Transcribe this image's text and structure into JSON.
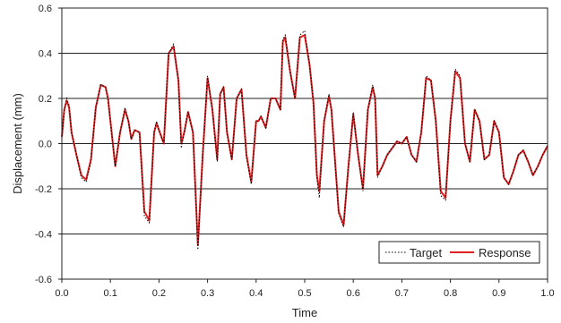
{
  "chart_data": {
    "type": "line",
    "xlabel": "Time",
    "ylabel": "Displacement (mm)",
    "xlim": [
      0.0,
      1.0
    ],
    "ylim": [
      -0.6,
      0.6
    ],
    "x_ticks": [
      "0.0",
      "0.1",
      "0.2",
      "0.3",
      "0.4",
      "0.5",
      "0.6",
      "0.7",
      "0.8",
      "0.9",
      "1.0"
    ],
    "y_ticks": [
      "-0.6",
      "-0.4",
      "-0.2",
      "0.0",
      "0.2",
      "0.4",
      "0.6"
    ],
    "grid": "horizontal",
    "legend_position": "bottom-right",
    "series": [
      {
        "name": "Target",
        "color": "#000000",
        "style": "dotted",
        "x": [
          0.0,
          0.005,
          0.01,
          0.015,
          0.02,
          0.03,
          0.04,
          0.05,
          0.06,
          0.07,
          0.08,
          0.09,
          0.095,
          0.1,
          0.105,
          0.11,
          0.12,
          0.13,
          0.137,
          0.143,
          0.15,
          0.16,
          0.17,
          0.18,
          0.19,
          0.195,
          0.2,
          0.21,
          0.22,
          0.23,
          0.24,
          0.246,
          0.252,
          0.26,
          0.27,
          0.28,
          0.29,
          0.3,
          0.31,
          0.32,
          0.326,
          0.333,
          0.34,
          0.35,
          0.36,
          0.37,
          0.38,
          0.39,
          0.4,
          0.405,
          0.41,
          0.42,
          0.43,
          0.44,
          0.45,
          0.455,
          0.46,
          0.47,
          0.48,
          0.49,
          0.5,
          0.51,
          0.518,
          0.525,
          0.53,
          0.54,
          0.55,
          0.555,
          0.56,
          0.57,
          0.58,
          0.59,
          0.6,
          0.61,
          0.62,
          0.63,
          0.64,
          0.645,
          0.65,
          0.66,
          0.67,
          0.68,
          0.69,
          0.7,
          0.71,
          0.72,
          0.73,
          0.74,
          0.75,
          0.76,
          0.77,
          0.78,
          0.79,
          0.8,
          0.81,
          0.82,
          0.83,
          0.84,
          0.85,
          0.86,
          0.87,
          0.88,
          0.89,
          0.9,
          0.91,
          0.92,
          0.93,
          0.94,
          0.95,
          0.96,
          0.97,
          0.98,
          0.99,
          1.0
        ],
        "values": [
          0.02,
          0.15,
          0.2,
          0.17,
          0.05,
          -0.05,
          -0.15,
          -0.17,
          -0.08,
          0.16,
          0.26,
          0.25,
          0.2,
          0.1,
          0.0,
          -0.1,
          0.05,
          0.16,
          0.1,
          0.02,
          0.06,
          0.05,
          -0.32,
          -0.35,
          0.05,
          0.1,
          0.06,
          0.0,
          0.4,
          0.44,
          0.28,
          -0.02,
          0.05,
          0.14,
          0.05,
          -0.47,
          -0.05,
          0.3,
          0.15,
          -0.08,
          0.22,
          0.25,
          0.05,
          -0.07,
          0.2,
          0.24,
          -0.06,
          -0.18,
          0.1,
          0.1,
          0.12,
          0.07,
          0.2,
          0.2,
          0.15,
          0.46,
          0.48,
          0.32,
          0.2,
          0.48,
          0.5,
          0.35,
          0.18,
          -0.15,
          -0.24,
          0.1,
          0.22,
          0.15,
          0.0,
          -0.31,
          -0.37,
          -0.1,
          0.14,
          -0.05,
          -0.21,
          0.15,
          0.26,
          0.2,
          -0.15,
          -0.1,
          -0.05,
          -0.02,
          0.01,
          0.0,
          0.03,
          -0.05,
          -0.08,
          0.05,
          0.3,
          0.28,
          0.1,
          -0.23,
          -0.25,
          0.1,
          0.33,
          0.3,
          0.0,
          -0.08,
          0.15,
          0.1,
          -0.07,
          -0.05,
          0.1,
          0.05,
          -0.15,
          -0.18,
          -0.12,
          -0.05,
          -0.03,
          -0.08,
          -0.14,
          -0.1,
          -0.05,
          -0.01
        ]
      },
      {
        "name": "Response",
        "color": "#e02020",
        "style": "solid",
        "x": [
          0.0,
          0.005,
          0.01,
          0.015,
          0.02,
          0.03,
          0.04,
          0.05,
          0.06,
          0.07,
          0.08,
          0.09,
          0.095,
          0.1,
          0.105,
          0.11,
          0.12,
          0.13,
          0.137,
          0.143,
          0.15,
          0.16,
          0.17,
          0.18,
          0.19,
          0.195,
          0.2,
          0.21,
          0.22,
          0.23,
          0.24,
          0.246,
          0.252,
          0.26,
          0.27,
          0.28,
          0.29,
          0.3,
          0.31,
          0.32,
          0.326,
          0.333,
          0.34,
          0.35,
          0.36,
          0.37,
          0.38,
          0.39,
          0.4,
          0.405,
          0.41,
          0.42,
          0.43,
          0.44,
          0.45,
          0.455,
          0.46,
          0.47,
          0.48,
          0.49,
          0.5,
          0.51,
          0.518,
          0.525,
          0.53,
          0.54,
          0.55,
          0.555,
          0.56,
          0.57,
          0.58,
          0.59,
          0.6,
          0.61,
          0.62,
          0.63,
          0.64,
          0.645,
          0.65,
          0.66,
          0.67,
          0.68,
          0.69,
          0.7,
          0.71,
          0.72,
          0.73,
          0.74,
          0.75,
          0.76,
          0.77,
          0.78,
          0.79,
          0.8,
          0.81,
          0.82,
          0.83,
          0.84,
          0.85,
          0.86,
          0.87,
          0.88,
          0.89,
          0.9,
          0.91,
          0.92,
          0.93,
          0.94,
          0.95,
          0.96,
          0.97,
          0.98,
          0.99,
          1.0
        ],
        "values": [
          0.03,
          0.15,
          0.19,
          0.16,
          0.05,
          -0.05,
          -0.14,
          -0.16,
          -0.07,
          0.16,
          0.26,
          0.25,
          0.2,
          0.1,
          0.0,
          -0.1,
          0.05,
          0.15,
          0.1,
          0.02,
          0.06,
          0.05,
          -0.3,
          -0.34,
          0.05,
          0.09,
          0.06,
          0.0,
          0.4,
          0.43,
          0.28,
          0.0,
          0.05,
          0.14,
          0.05,
          -0.45,
          -0.05,
          0.29,
          0.15,
          -0.07,
          0.22,
          0.25,
          0.05,
          -0.07,
          0.2,
          0.24,
          -0.05,
          -0.17,
          0.1,
          0.1,
          0.12,
          0.07,
          0.2,
          0.2,
          0.15,
          0.45,
          0.47,
          0.32,
          0.2,
          0.47,
          0.48,
          0.35,
          0.18,
          -0.14,
          -0.21,
          0.1,
          0.21,
          0.15,
          0.0,
          -0.3,
          -0.36,
          -0.1,
          0.13,
          -0.05,
          -0.2,
          0.15,
          0.25,
          0.2,
          -0.14,
          -0.1,
          -0.05,
          -0.02,
          0.01,
          0.0,
          0.03,
          -0.05,
          -0.08,
          0.05,
          0.29,
          0.28,
          0.1,
          -0.21,
          -0.24,
          0.1,
          0.32,
          0.29,
          0.0,
          -0.08,
          0.15,
          0.1,
          -0.07,
          -0.05,
          0.1,
          0.05,
          -0.15,
          -0.18,
          -0.12,
          -0.05,
          -0.03,
          -0.08,
          -0.14,
          -0.1,
          -0.05,
          -0.01
        ]
      }
    ]
  }
}
